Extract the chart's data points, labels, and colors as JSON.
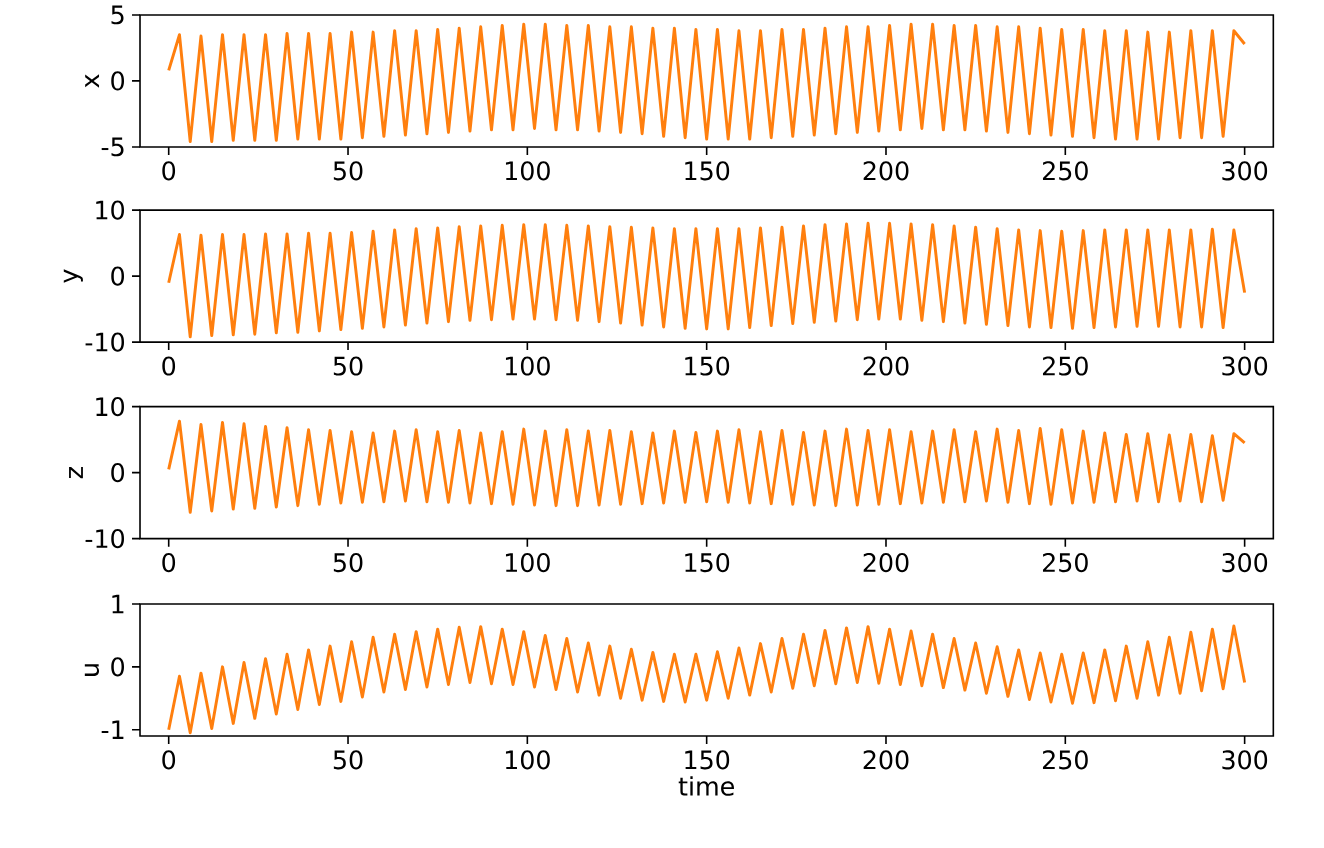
{
  "chart_data": [
    {
      "type": "line",
      "ylabel": "x",
      "color": "#ff7f0e",
      "xlim": [
        -8,
        308
      ],
      "ylim": [
        -5,
        5
      ],
      "xticks": [
        0,
        50,
        100,
        150,
        200,
        250,
        300
      ],
      "yticks": [
        -5,
        0,
        5
      ],
      "x": [
        0,
        3,
        6,
        9,
        12,
        15,
        18,
        21,
        24,
        27,
        30,
        33,
        36,
        39,
        42,
        45,
        48,
        51,
        54,
        57,
        60,
        63,
        66,
        69,
        72,
        75,
        78,
        81,
        84,
        87,
        90,
        93,
        96,
        99,
        102,
        105,
        108,
        111,
        114,
        117,
        120,
        123,
        126,
        129,
        132,
        135,
        138,
        141,
        144,
        147,
        150,
        153,
        156,
        159,
        162,
        165,
        168,
        171,
        174,
        177,
        180,
        183,
        186,
        189,
        192,
        195,
        198,
        201,
        204,
        207,
        210,
        213,
        216,
        219,
        222,
        225,
        228,
        231,
        234,
        237,
        240,
        243,
        246,
        249,
        252,
        255,
        258,
        261,
        264,
        267,
        270,
        273,
        276,
        279,
        282,
        285,
        288,
        291,
        294,
        297,
        300
      ],
      "values": [
        0.8,
        3.5,
        -4.6,
        3.4,
        -4.6,
        3.5,
        -4.5,
        3.5,
        -4.5,
        3.5,
        -4.5,
        3.6,
        -4.4,
        3.6,
        -4.4,
        3.6,
        -4.4,
        3.7,
        -4.3,
        3.7,
        -4.2,
        3.8,
        -4.1,
        3.8,
        -4.0,
        3.9,
        -3.9,
        4.0,
        -3.8,
        4.1,
        -3.7,
        4.2,
        -3.7,
        4.3,
        -3.6,
        4.3,
        -3.7,
        4.2,
        -3.7,
        4.2,
        -3.8,
        4.1,
        -3.9,
        4.1,
        -4.0,
        4.0,
        -4.2,
        4.0,
        -4.3,
        3.9,
        -4.4,
        3.9,
        -4.4,
        3.8,
        -4.4,
        3.8,
        -4.3,
        3.9,
        -4.2,
        3.9,
        -4.1,
        4.0,
        -4.0,
        4.1,
        -3.9,
        4.1,
        -3.8,
        4.2,
        -3.7,
        4.3,
        -3.6,
        4.3,
        -3.7,
        4.2,
        -3.7,
        4.2,
        -3.8,
        4.1,
        -3.9,
        4.1,
        -4.0,
        4.0,
        -4.1,
        3.9,
        -4.2,
        3.9,
        -4.3,
        3.8,
        -4.4,
        3.8,
        -4.4,
        3.7,
        -4.4,
        3.7,
        -4.3,
        3.8,
        -4.3,
        3.8,
        -4.2,
        3.8,
        2.8
      ]
    },
    {
      "type": "line",
      "ylabel": "y",
      "color": "#ff7f0e",
      "xlim": [
        -8,
        308
      ],
      "ylim": [
        -10,
        10
      ],
      "xticks": [
        0,
        50,
        100,
        150,
        200,
        250,
        300
      ],
      "yticks": [
        -10,
        0,
        10
      ],
      "x": [
        0,
        3,
        6,
        9,
        12,
        15,
        18,
        21,
        24,
        27,
        30,
        33,
        36,
        39,
        42,
        45,
        48,
        51,
        54,
        57,
        60,
        63,
        66,
        69,
        72,
        75,
        78,
        81,
        84,
        87,
        90,
        93,
        96,
        99,
        102,
        105,
        108,
        111,
        114,
        117,
        120,
        123,
        126,
        129,
        132,
        135,
        138,
        141,
        144,
        147,
        150,
        153,
        156,
        159,
        162,
        165,
        168,
        171,
        174,
        177,
        180,
        183,
        186,
        189,
        192,
        195,
        198,
        201,
        204,
        207,
        210,
        213,
        216,
        219,
        222,
        225,
        228,
        231,
        234,
        237,
        240,
        243,
        246,
        249,
        252,
        255,
        258,
        261,
        264,
        267,
        270,
        273,
        276,
        279,
        282,
        285,
        288,
        291,
        294,
        297,
        300
      ],
      "values": [
        -1.0,
        6.3,
        -9.2,
        6.2,
        -9.0,
        6.3,
        -8.9,
        6.3,
        -8.8,
        6.4,
        -8.6,
        6.4,
        -8.5,
        6.5,
        -8.3,
        6.5,
        -8.1,
        6.6,
        -7.9,
        6.8,
        -7.7,
        7.0,
        -7.4,
        7.2,
        -7.1,
        7.3,
        -6.9,
        7.5,
        -6.7,
        7.6,
        -6.6,
        7.7,
        -6.5,
        7.8,
        -6.5,
        7.8,
        -6.6,
        7.7,
        -6.7,
        7.6,
        -6.9,
        7.5,
        -7.1,
        7.4,
        -7.4,
        7.3,
        -7.7,
        7.2,
        -7.9,
        7.2,
        -8.0,
        7.2,
        -8.0,
        7.2,
        -7.8,
        7.3,
        -7.5,
        7.4,
        -7.2,
        7.6,
        -7.0,
        7.8,
        -6.8,
        7.9,
        -6.6,
        8.0,
        -6.5,
        8.0,
        -6.5,
        7.9,
        -6.7,
        7.8,
        -6.9,
        7.6,
        -7.1,
        7.4,
        -7.3,
        7.2,
        -7.5,
        7.0,
        -7.7,
        6.9,
        -7.8,
        6.8,
        -7.9,
        6.9,
        -7.8,
        7.0,
        -7.7,
        7.0,
        -7.6,
        7.0,
        -7.6,
        7.0,
        -7.7,
        7.0,
        -7.7,
        7.1,
        -7.8,
        7.0,
        -2.5
      ]
    },
    {
      "type": "line",
      "ylabel": "z",
      "color": "#ff7f0e",
      "xlim": [
        -8,
        308
      ],
      "ylim": [
        -10,
        10
      ],
      "xticks": [
        0,
        50,
        100,
        150,
        200,
        250,
        300
      ],
      "yticks": [
        -10,
        0,
        10
      ],
      "x": [
        0,
        3,
        6,
        9,
        12,
        15,
        18,
        21,
        24,
        27,
        30,
        33,
        36,
        39,
        42,
        45,
        48,
        51,
        54,
        57,
        60,
        63,
        66,
        69,
        72,
        75,
        78,
        81,
        84,
        87,
        90,
        93,
        96,
        99,
        102,
        105,
        108,
        111,
        114,
        117,
        120,
        123,
        126,
        129,
        132,
        135,
        138,
        141,
        144,
        147,
        150,
        153,
        156,
        159,
        162,
        165,
        168,
        171,
        174,
        177,
        180,
        183,
        186,
        189,
        192,
        195,
        198,
        201,
        204,
        207,
        210,
        213,
        216,
        219,
        222,
        225,
        228,
        231,
        234,
        237,
        240,
        243,
        246,
        249,
        252,
        255,
        258,
        261,
        264,
        267,
        270,
        273,
        276,
        279,
        282,
        285,
        288,
        291,
        294,
        297,
        300
      ],
      "values": [
        0.5,
        7.8,
        -6.0,
        7.3,
        -5.8,
        7.6,
        -5.5,
        7.4,
        -5.4,
        7.0,
        -5.2,
        6.8,
        -5.0,
        6.5,
        -4.8,
        6.4,
        -4.6,
        6.2,
        -4.5,
        6.0,
        -4.4,
        6.3,
        -4.3,
        6.5,
        -4.4,
        6.2,
        -4.5,
        6.4,
        -4.6,
        6.0,
        -4.7,
        6.2,
        -4.8,
        6.6,
        -4.9,
        6.3,
        -5.0,
        6.5,
        -5.0,
        6.3,
        -4.9,
        6.4,
        -4.8,
        6.2,
        -4.7,
        6.0,
        -4.6,
        6.3,
        -4.5,
        6.1,
        -4.4,
        6.3,
        -4.5,
        6.5,
        -4.6,
        6.2,
        -4.7,
        6.4,
        -4.8,
        6.1,
        -4.9,
        6.3,
        -5.0,
        6.6,
        -4.9,
        6.4,
        -4.8,
        6.5,
        -4.7,
        6.2,
        -4.6,
        6.3,
        -4.5,
        6.5,
        -4.4,
        6.2,
        -4.3,
        6.6,
        -4.5,
        6.4,
        -4.7,
        6.7,
        -4.8,
        6.5,
        -4.6,
        6.3,
        -4.5,
        6.0,
        -4.4,
        5.8,
        -4.3,
        5.9,
        -4.4,
        5.7,
        -4.3,
        5.8,
        -4.4,
        5.6,
        -4.2,
        5.9,
        4.5
      ]
    },
    {
      "type": "line",
      "ylabel": "u",
      "xlabel": "time",
      "color": "#ff7f0e",
      "xlim": [
        -8,
        308
      ],
      "ylim": [
        -1.1,
        1
      ],
      "xticks": [
        0,
        50,
        100,
        150,
        200,
        250,
        300
      ],
      "yticks": [
        -1,
        0,
        1
      ],
      "x": [
        0,
        3,
        6,
        9,
        12,
        15,
        18,
        21,
        24,
        27,
        30,
        33,
        36,
        39,
        42,
        45,
        48,
        51,
        54,
        57,
        60,
        63,
        66,
        69,
        72,
        75,
        78,
        81,
        84,
        87,
        90,
        93,
        96,
        99,
        102,
        105,
        108,
        111,
        114,
        117,
        120,
        123,
        126,
        129,
        132,
        135,
        138,
        141,
        144,
        147,
        150,
        153,
        156,
        159,
        162,
        165,
        168,
        171,
        174,
        177,
        180,
        183,
        186,
        189,
        192,
        195,
        198,
        201,
        204,
        207,
        210,
        213,
        216,
        219,
        222,
        225,
        228,
        231,
        234,
        237,
        240,
        243,
        246,
        249,
        252,
        255,
        258,
        261,
        264,
        267,
        270,
        273,
        276,
        279,
        282,
        285,
        288,
        291,
        294,
        297,
        300
      ],
      "values": [
        -1.0,
        -0.15,
        -1.05,
        -0.1,
        -0.98,
        0.0,
        -0.9,
        0.07,
        -0.82,
        0.13,
        -0.75,
        0.2,
        -0.68,
        0.27,
        -0.6,
        0.33,
        -0.55,
        0.4,
        -0.48,
        0.47,
        -0.4,
        0.52,
        -0.36,
        0.56,
        -0.32,
        0.6,
        -0.28,
        0.63,
        -0.25,
        0.64,
        -0.27,
        0.6,
        -0.28,
        0.56,
        -0.32,
        0.5,
        -0.36,
        0.45,
        -0.4,
        0.38,
        -0.45,
        0.33,
        -0.5,
        0.28,
        -0.53,
        0.23,
        -0.55,
        0.2,
        -0.56,
        0.2,
        -0.53,
        0.24,
        -0.5,
        0.3,
        -0.45,
        0.37,
        -0.4,
        0.45,
        -0.34,
        0.52,
        -0.3,
        0.58,
        -0.27,
        0.62,
        -0.25,
        0.64,
        -0.26,
        0.6,
        -0.28,
        0.57,
        -0.3,
        0.52,
        -0.33,
        0.45,
        -0.37,
        0.38,
        -0.42,
        0.32,
        -0.47,
        0.27,
        -0.52,
        0.22,
        -0.56,
        0.2,
        -0.58,
        0.22,
        -0.57,
        0.27,
        -0.54,
        0.33,
        -0.5,
        0.4,
        -0.45,
        0.47,
        -0.42,
        0.55,
        -0.38,
        0.6,
        -0.35,
        0.65,
        -0.25
      ]
    }
  ]
}
